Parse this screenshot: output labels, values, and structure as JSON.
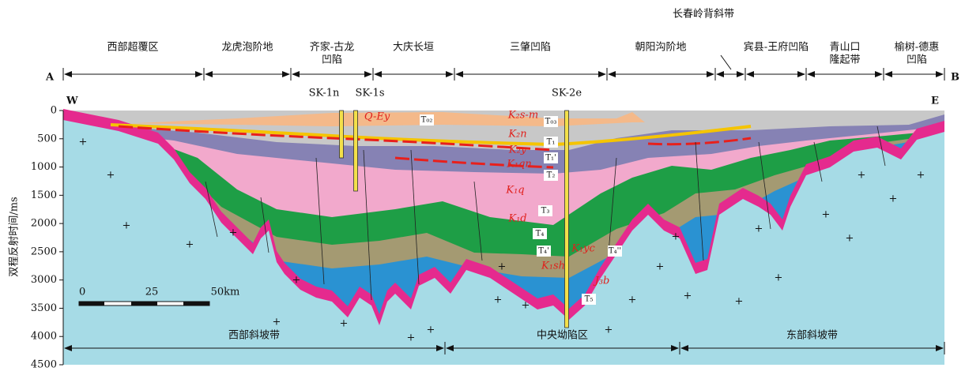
{
  "header": {
    "top_note": "长春岭背斜带",
    "end_left": "A",
    "end_right": "B",
    "zones": [
      [
        "西部超覆区"
      ],
      [
        "龙虎泡阶地"
      ],
      [
        "齐家-古龙",
        "凹陷"
      ],
      [
        "大庆长垣"
      ],
      [
        "三肇凹陷"
      ],
      [
        "朝阳沟阶地"
      ],
      [
        "宾县-王府凹陷"
      ],
      [
        "青山口",
        "隆起带"
      ],
      [
        "榆树-德惠",
        "凹陷"
      ]
    ]
  },
  "section": {
    "west": "W",
    "east": "E",
    "wells": [
      "SK-1n",
      "SK-1s",
      "SK-2e"
    ],
    "layer_labels": [
      "Q-Ey",
      "K₂s-m",
      "K₂n",
      "K₂y",
      "K₁qn",
      "K₁q",
      "K₁d",
      "K₁yc",
      "K₁sh",
      "J₃b"
    ],
    "horizon_labels": [
      "T₀₂",
      "T₀₃",
      "T₁",
      "T₁'",
      "T₂",
      "T₃",
      "T₄",
      "T₄'",
      "T₄''",
      "T₅"
    ]
  },
  "axis": {
    "label": "双程反射时间/ms",
    "lim": [
      0,
      4500
    ],
    "ticks": [
      0,
      500,
      1000,
      1500,
      2000,
      2500,
      3000,
      3500,
      4000,
      4500
    ]
  },
  "scale_bar": {
    "labels": [
      "0",
      "25",
      "50km"
    ]
  },
  "regions": [
    "西部斜坡带",
    "中央坳陷区",
    "东部斜坡带"
  ]
}
